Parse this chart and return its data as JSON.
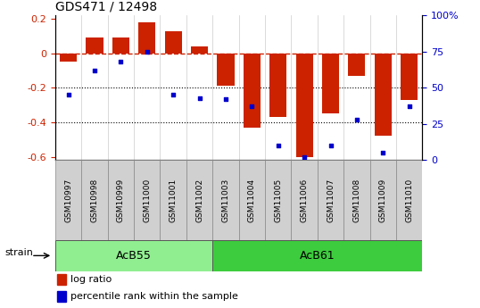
{
  "title": "GDS471 / 12498",
  "samples": [
    "GSM10997",
    "GSM10998",
    "GSM10999",
    "GSM11000",
    "GSM11001",
    "GSM11002",
    "GSM11003",
    "GSM11004",
    "GSM11005",
    "GSM11006",
    "GSM11007",
    "GSM11008",
    "GSM11009",
    "GSM11010"
  ],
  "log_ratio": [
    -0.05,
    0.09,
    0.09,
    0.18,
    0.13,
    0.04,
    -0.19,
    -0.43,
    -0.37,
    -0.6,
    -0.35,
    -0.13,
    -0.48,
    -0.27
  ],
  "percentile": [
    45,
    62,
    68,
    75,
    45,
    43,
    42,
    37,
    10,
    2,
    10,
    28,
    5,
    37
  ],
  "strains": [
    {
      "label": "AcB55",
      "start": 0,
      "end": 6,
      "color": "#90ee90"
    },
    {
      "label": "AcB61",
      "start": 6,
      "end": 14,
      "color": "#3dcc3d"
    }
  ],
  "bar_color": "#cc2200",
  "dot_color": "#0000cc",
  "dashed_color": "#cc2200",
  "ylim_left": [
    -0.62,
    0.22
  ],
  "ylim_right": [
    0,
    100
  ],
  "yticks_left": [
    0.2,
    0.0,
    -0.2,
    -0.4,
    -0.6
  ],
  "yticks_right": [
    100,
    75,
    50,
    25,
    0
  ],
  "hlines": [
    -0.2,
    -0.4
  ],
  "strain_label": "strain",
  "legend_bar": "log ratio",
  "legend_dot": "percentile rank within the sample",
  "bg_color": "#ffffff",
  "plot_bg": "#ffffff",
  "gsm_box_color": "#d0d0d0",
  "gsm_box_edge": "#888888"
}
